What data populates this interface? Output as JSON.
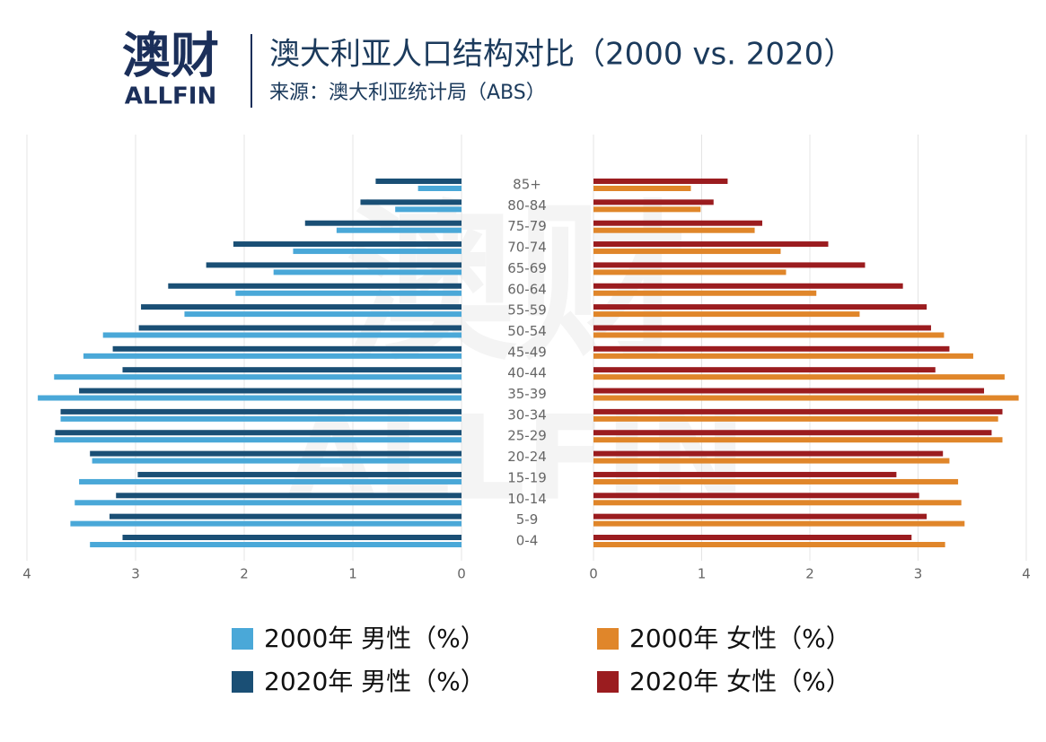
{
  "header": {
    "logo": "澳财",
    "logo_sub": "ALLFIN"
  },
  "chart_data": {
    "type": "pyramid",
    "title": "澳大利亚人口结构对比（2000 vs. 2020）",
    "subtitle": "来源：澳大利亚统计局（ABS）",
    "categories": [
      "85+",
      "80-84",
      "75-79",
      "70-74",
      "65-69",
      "60-64",
      "55-59",
      "50-54",
      "45-49",
      "40-44",
      "35-39",
      "30-34",
      "25-29",
      "20-24",
      "15-19",
      "10-14",
      "5-9",
      "0-4"
    ],
    "xlim": [
      0,
      4
    ],
    "xticks": [
      0,
      1,
      2,
      3,
      4
    ],
    "grid": true,
    "series": [
      {
        "name": "2000年 男性（%）",
        "side": "left",
        "color": "#4aa8d8",
        "values": [
          0.4,
          0.61,
          1.15,
          1.55,
          1.73,
          2.08,
          2.55,
          3.3,
          3.48,
          3.75,
          3.9,
          3.69,
          3.75,
          3.4,
          3.52,
          3.56,
          3.6,
          3.42
        ]
      },
      {
        "name": "2020年 男性（%）",
        "side": "left",
        "color": "#1a4f75",
        "values": [
          0.79,
          0.93,
          1.44,
          2.1,
          2.35,
          2.7,
          2.95,
          2.97,
          3.21,
          3.12,
          3.52,
          3.69,
          3.74,
          3.42,
          2.98,
          3.18,
          3.24,
          3.12
        ]
      },
      {
        "name": "2000年 女性（%）",
        "side": "right",
        "color": "#e0862a",
        "values": [
          0.9,
          0.99,
          1.49,
          1.73,
          1.78,
          2.06,
          2.46,
          3.24,
          3.51,
          3.8,
          3.93,
          3.74,
          3.78,
          3.29,
          3.37,
          3.4,
          3.43,
          3.25
        ]
      },
      {
        "name": "2020年 女性（%）",
        "side": "right",
        "color": "#9b1c1f",
        "values": [
          1.24,
          1.11,
          1.56,
          2.17,
          2.51,
          2.86,
          3.08,
          3.12,
          3.29,
          3.16,
          3.61,
          3.78,
          3.68,
          3.23,
          2.8,
          3.01,
          3.08,
          2.94
        ]
      }
    ]
  }
}
